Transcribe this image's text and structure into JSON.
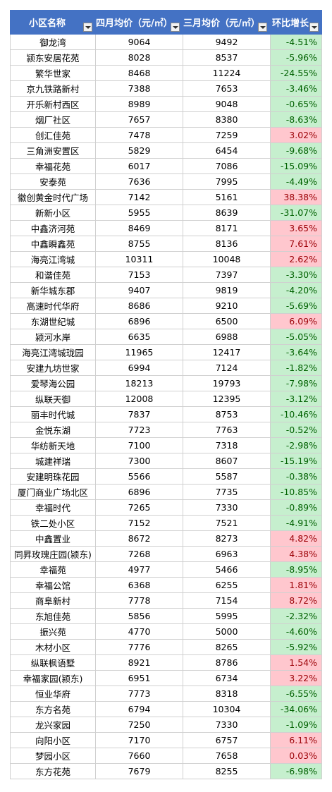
{
  "headers": [
    "小区名称",
    "四月均价（元/㎡）",
    "三月均价（元/㎡）",
    "环比增长"
  ],
  "colors": {
    "header_bg": "#4472c4",
    "decrease_bg": "#c6efce",
    "decrease_text": "#006100",
    "increase_bg": "#ffc7ce",
    "increase_text": "#9c0006"
  },
  "rows": [
    {
      "name": "御龙湾",
      "apr": "9064",
      "mar": "9492",
      "change": "-4.51%"
    },
    {
      "name": "颍东安居花苑",
      "apr": "8028",
      "mar": "8537",
      "change": "-5.96%"
    },
    {
      "name": "繁华世家",
      "apr": "8468",
      "mar": "11224",
      "change": "-24.55%"
    },
    {
      "name": "京九铁路新村",
      "apr": "7388",
      "mar": "7653",
      "change": "-3.46%"
    },
    {
      "name": "开乐新村西区",
      "apr": "8989",
      "mar": "9048",
      "change": "-0.65%"
    },
    {
      "name": "烟厂社区",
      "apr": "7657",
      "mar": "8380",
      "change": "-8.63%"
    },
    {
      "name": "创汇佳苑",
      "apr": "7478",
      "mar": "7259",
      "change": "3.02%"
    },
    {
      "name": "三角洲安置区",
      "apr": "5829",
      "mar": "6454",
      "change": "-9.68%"
    },
    {
      "name": "幸福花苑",
      "apr": "6017",
      "mar": "7086",
      "change": "-15.09%"
    },
    {
      "name": "安泰苑",
      "apr": "7636",
      "mar": "7995",
      "change": "-4.49%"
    },
    {
      "name": "徽创黄金时代广场",
      "apr": "7142",
      "mar": "5161",
      "change": "38.38%"
    },
    {
      "name": "新新小区",
      "apr": "5955",
      "mar": "8639",
      "change": "-31.07%"
    },
    {
      "name": "中鑫济河苑",
      "apr": "8469",
      "mar": "8171",
      "change": "3.65%"
    },
    {
      "name": "中鑫瞬鑫苑",
      "apr": "8755",
      "mar": "8136",
      "change": "7.61%"
    },
    {
      "name": "海亮江湾城",
      "apr": "10311",
      "mar": "10048",
      "change": "2.62%"
    },
    {
      "name": "和谐佳苑",
      "apr": "7153",
      "mar": "7397",
      "change": "-3.30%"
    },
    {
      "name": "新华城东郡",
      "apr": "9407",
      "mar": "9819",
      "change": "-4.20%"
    },
    {
      "name": "高速时代华府",
      "apr": "8686",
      "mar": "9210",
      "change": "-5.69%"
    },
    {
      "name": "东湖世纪城",
      "apr": "6896",
      "mar": "6500",
      "change": "6.09%"
    },
    {
      "name": "颍河水岸",
      "apr": "6635",
      "mar": "6988",
      "change": "-5.05%"
    },
    {
      "name": "海亮江湾城珑园",
      "apr": "11965",
      "mar": "12417",
      "change": "-3.64%"
    },
    {
      "name": "安建九坊世家",
      "apr": "6994",
      "mar": "7124",
      "change": "-1.82%"
    },
    {
      "name": "爱琴海公园",
      "apr": "18213",
      "mar": "19793",
      "change": "-7.98%"
    },
    {
      "name": "纵联天御",
      "apr": "12008",
      "mar": "12395",
      "change": "-3.12%"
    },
    {
      "name": "丽丰时代城",
      "apr": "7837",
      "mar": "8753",
      "change": "-10.46%"
    },
    {
      "name": "金悦东湖",
      "apr": "7723",
      "mar": "7763",
      "change": "-0.52%"
    },
    {
      "name": "华纺新天地",
      "apr": "7100",
      "mar": "7318",
      "change": "-2.98%"
    },
    {
      "name": "城建祥瑞",
      "apr": "7300",
      "mar": "8607",
      "change": "-15.19%"
    },
    {
      "name": "安建明珠花园",
      "apr": "5566",
      "mar": "5587",
      "change": "-0.38%"
    },
    {
      "name": "厦门商业广场北区",
      "apr": "6896",
      "mar": "7735",
      "change": "-10.85%"
    },
    {
      "name": "幸福时代",
      "apr": "7265",
      "mar": "7330",
      "change": "-0.89%"
    },
    {
      "name": "铁二处小区",
      "apr": "7152",
      "mar": "7521",
      "change": "-4.91%"
    },
    {
      "name": "中鑫置业",
      "apr": "8672",
      "mar": "8273",
      "change": "4.82%"
    },
    {
      "name": "同昇玫瑰庄园(颍东)",
      "apr": "7268",
      "mar": "6963",
      "change": "4.38%"
    },
    {
      "name": "幸福苑",
      "apr": "4977",
      "mar": "5466",
      "change": "-8.95%"
    },
    {
      "name": "幸福公馆",
      "apr": "6368",
      "mar": "6255",
      "change": "1.81%"
    },
    {
      "name": "商阜新村",
      "apr": "7778",
      "mar": "7154",
      "change": "8.72%"
    },
    {
      "name": "东旭佳苑",
      "apr": "5856",
      "mar": "5995",
      "change": "-2.32%"
    },
    {
      "name": "振兴苑",
      "apr": "4770",
      "mar": "5000",
      "change": "-4.60%"
    },
    {
      "name": "木材小区",
      "apr": "7776",
      "mar": "8265",
      "change": "-5.92%"
    },
    {
      "name": "纵联枫语墅",
      "apr": "8921",
      "mar": "8786",
      "change": "1.54%"
    },
    {
      "name": "幸福家园(颍东)",
      "apr": "6951",
      "mar": "6734",
      "change": "3.22%"
    },
    {
      "name": "恒业华府",
      "apr": "7773",
      "mar": "8318",
      "change": "-6.55%"
    },
    {
      "name": "东方名苑",
      "apr": "6794",
      "mar": "10304",
      "change": "-34.06%"
    },
    {
      "name": "龙兴家园",
      "apr": "7250",
      "mar": "7330",
      "change": "-1.09%"
    },
    {
      "name": "向阳小区",
      "apr": "7170",
      "mar": "6757",
      "change": "6.11%"
    },
    {
      "name": "梦园小区",
      "apr": "7660",
      "mar": "7658",
      "change": "0.03%"
    },
    {
      "name": "东方花苑",
      "apr": "7679",
      "mar": "8255",
      "change": "-6.98%"
    }
  ]
}
